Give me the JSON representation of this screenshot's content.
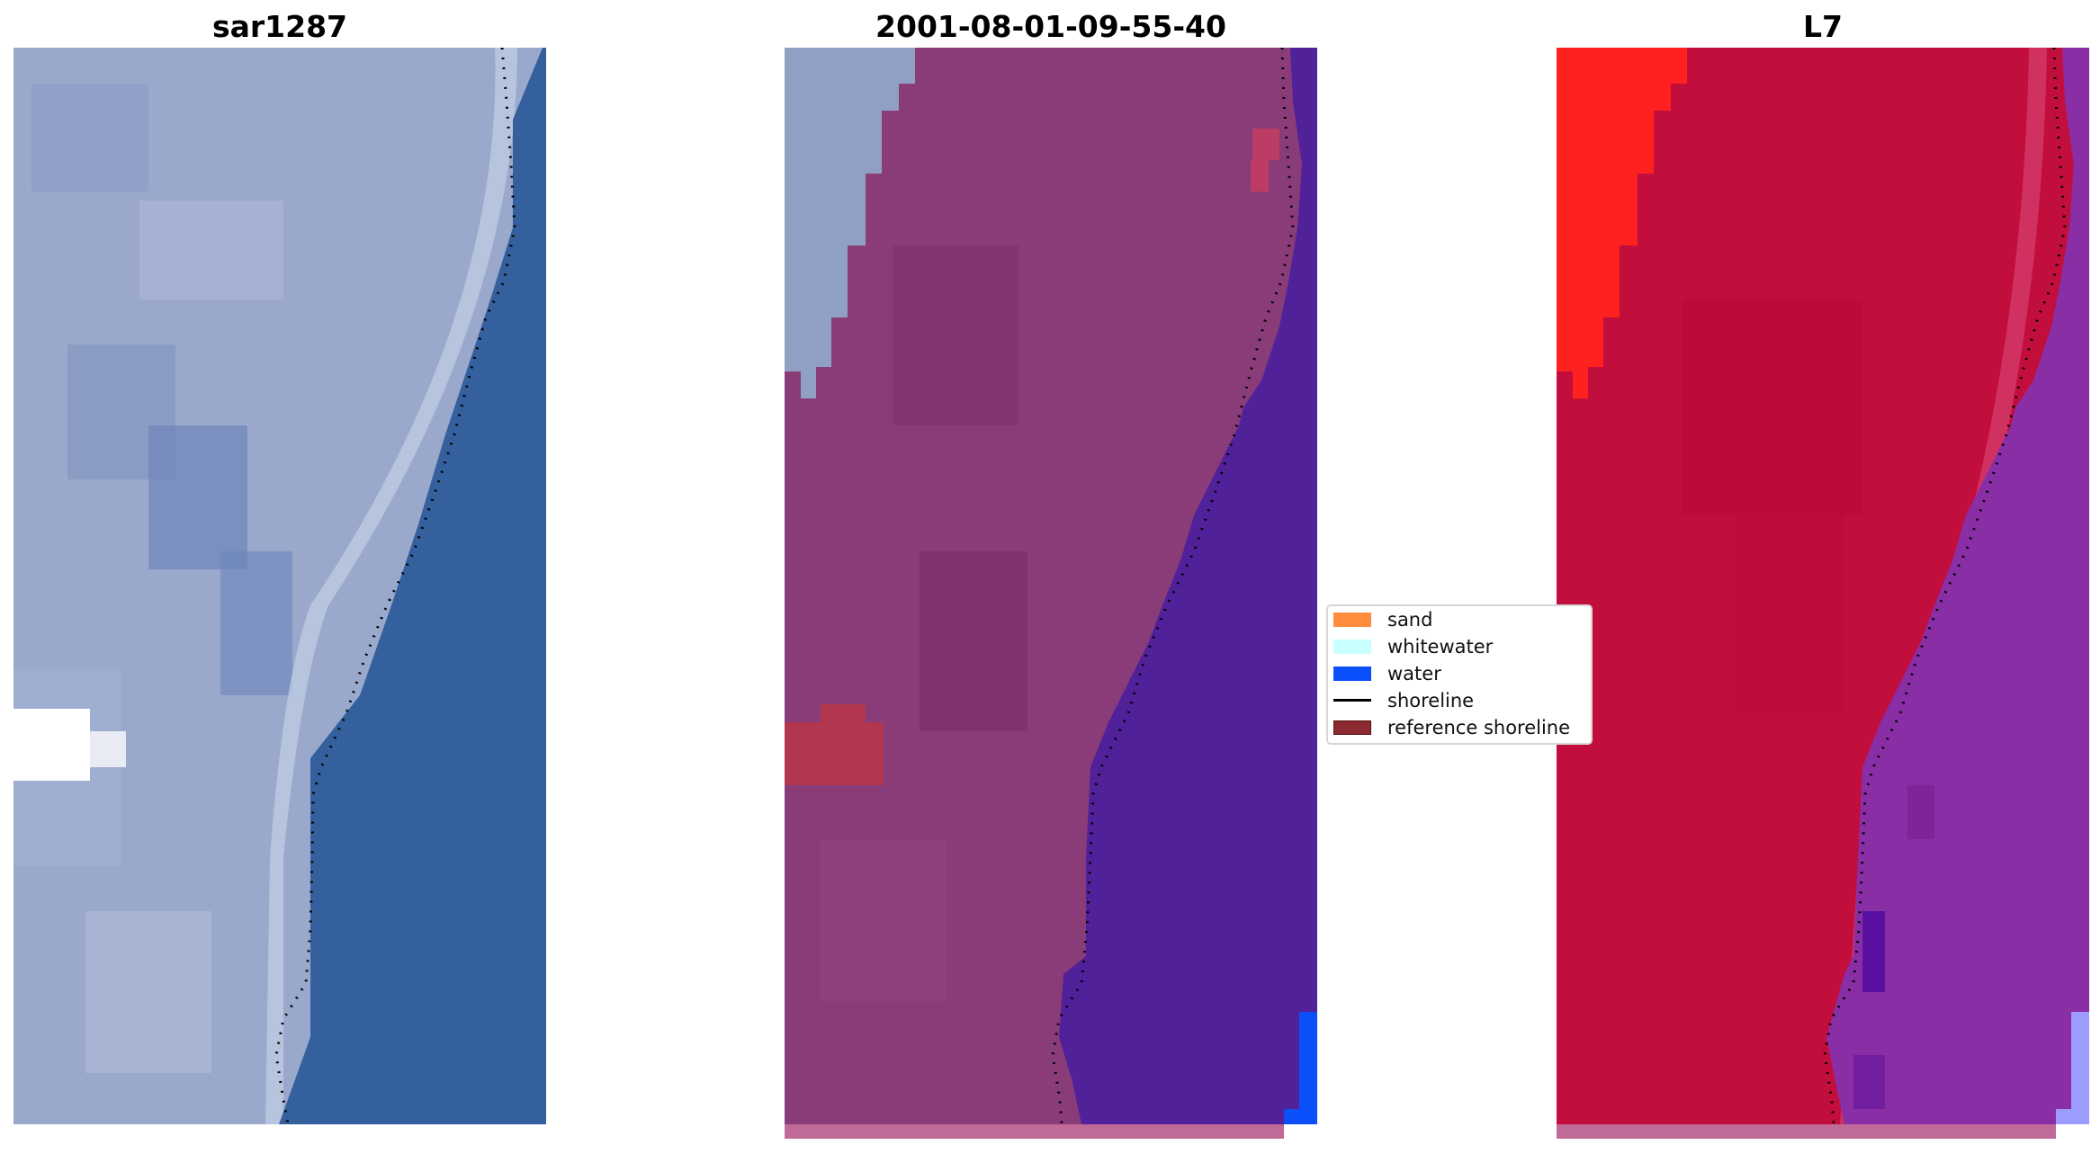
{
  "titles": {
    "panel1": "sar1287",
    "panel2": "2001-08-01-09-55-40",
    "panel3": "L7"
  },
  "legend": {
    "items": [
      {
        "label": "sand",
        "color": "#ff8c3c"
      },
      {
        "label": "whitewater",
        "color": "#c8ffff"
      },
      {
        "label": "water",
        "color": "#0b4ffb"
      },
      {
        "label": "shoreline",
        "color": "#000000"
      },
      {
        "label": "reference shoreline",
        "color": "#8b2a30"
      }
    ]
  },
  "colors": {
    "rgb_land": "#9aa8cc",
    "rgb_water": "#35609e",
    "rgb_white": "#ffffff",
    "class_land": "#8a3c78",
    "class_water": "#51219a",
    "class_grey": "#8fa0c4",
    "class_sand": "#b2374e",
    "class_water_bright": "#0b4ffb",
    "class_strip": "#c06a98",
    "l7_land": "#c20e3c",
    "l7_bright": "#ff2020",
    "l7_water": "#8a2ea6",
    "l7_deep": "#5a10a0",
    "l7_edge": "#9c9cff",
    "shoreline": "#000000"
  }
}
